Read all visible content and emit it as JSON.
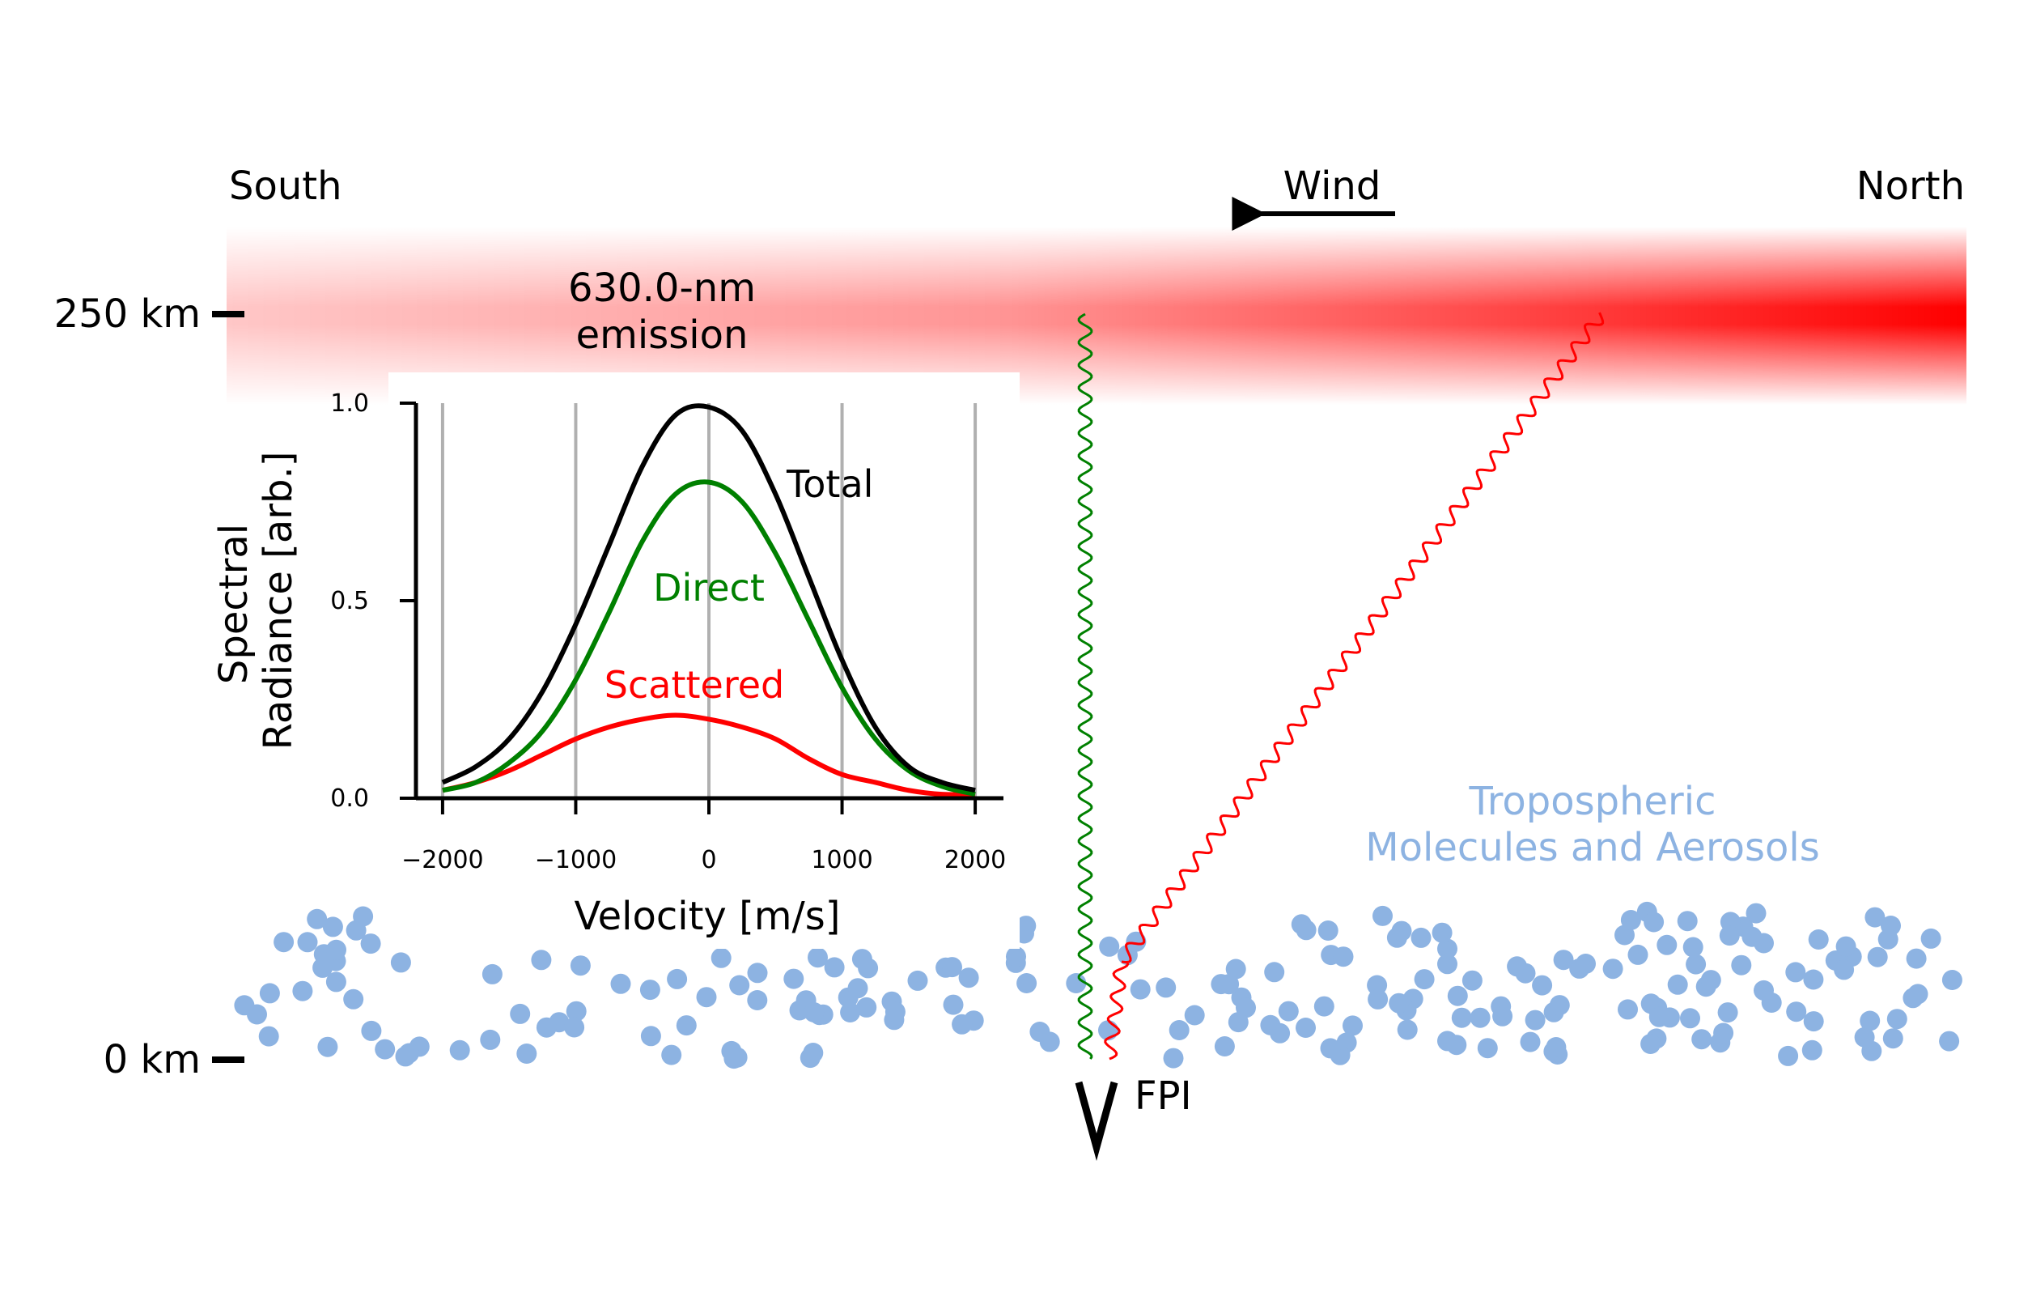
{
  "labels": {
    "south": "South",
    "north": "North",
    "wind": "Wind",
    "emission_line1": "630.0-nm",
    "emission_line2": "emission",
    "alt_high": "250 km",
    "alt_low": "0 km",
    "fpi": "FPI",
    "tropo_line1": "Tropospheric",
    "tropo_line2": "Molecules and Aerosols"
  },
  "colors": {
    "emission": "#ff0000",
    "direct": "#008000",
    "scattered": "#ff0000",
    "total": "#000000",
    "particles": "#8db3e2",
    "grid": "#b0b0b0"
  },
  "chart_data": {
    "type": "line",
    "xlabel": "Velocity [m/s]",
    "ylabel_line1": "Spectral",
    "ylabel_line2": "Radiance [arb.]",
    "xlim": [
      -2200,
      2200
    ],
    "ylim": [
      0,
      1.0
    ],
    "xticks": [
      -2000,
      -1000,
      0,
      1000,
      2000
    ],
    "xtick_labels": [
      "−2000",
      "−1000",
      "0",
      "1000",
      "2000"
    ],
    "yticks": [
      0.0,
      0.5,
      1.0
    ],
    "ytick_labels": [
      "0.0",
      "0.5",
      "1.0"
    ],
    "grid": "vertical at x ticks",
    "series": [
      {
        "name": "Total",
        "color": "#000000",
        "x": [
          -2000,
          -1750,
          -1500,
          -1250,
          -1000,
          -750,
          -500,
          -250,
          0,
          250,
          500,
          750,
          1000,
          1250,
          1500,
          1750,
          2000
        ],
        "y": [
          0.04,
          0.08,
          0.15,
          0.27,
          0.44,
          0.64,
          0.84,
          0.97,
          0.99,
          0.93,
          0.77,
          0.56,
          0.35,
          0.18,
          0.08,
          0.04,
          0.02
        ]
      },
      {
        "name": "Direct",
        "color": "#008000",
        "x": [
          -2000,
          -1750,
          -1500,
          -1250,
          -1000,
          -750,
          -500,
          -250,
          0,
          250,
          500,
          750,
          1000,
          1250,
          1500,
          1750,
          2000
        ],
        "y": [
          0.02,
          0.04,
          0.09,
          0.17,
          0.3,
          0.47,
          0.65,
          0.77,
          0.8,
          0.75,
          0.62,
          0.45,
          0.28,
          0.15,
          0.07,
          0.03,
          0.01
        ]
      },
      {
        "name": "Scattered",
        "color": "#ff0000",
        "x": [
          -2000,
          -1750,
          -1500,
          -1250,
          -1000,
          -750,
          -500,
          -250,
          0,
          250,
          500,
          750,
          1000,
          1250,
          1500,
          1750,
          2000
        ],
        "y": [
          0.02,
          0.04,
          0.07,
          0.11,
          0.15,
          0.18,
          0.2,
          0.21,
          0.2,
          0.18,
          0.15,
          0.1,
          0.06,
          0.04,
          0.02,
          0.01,
          0.01
        ]
      }
    ]
  }
}
